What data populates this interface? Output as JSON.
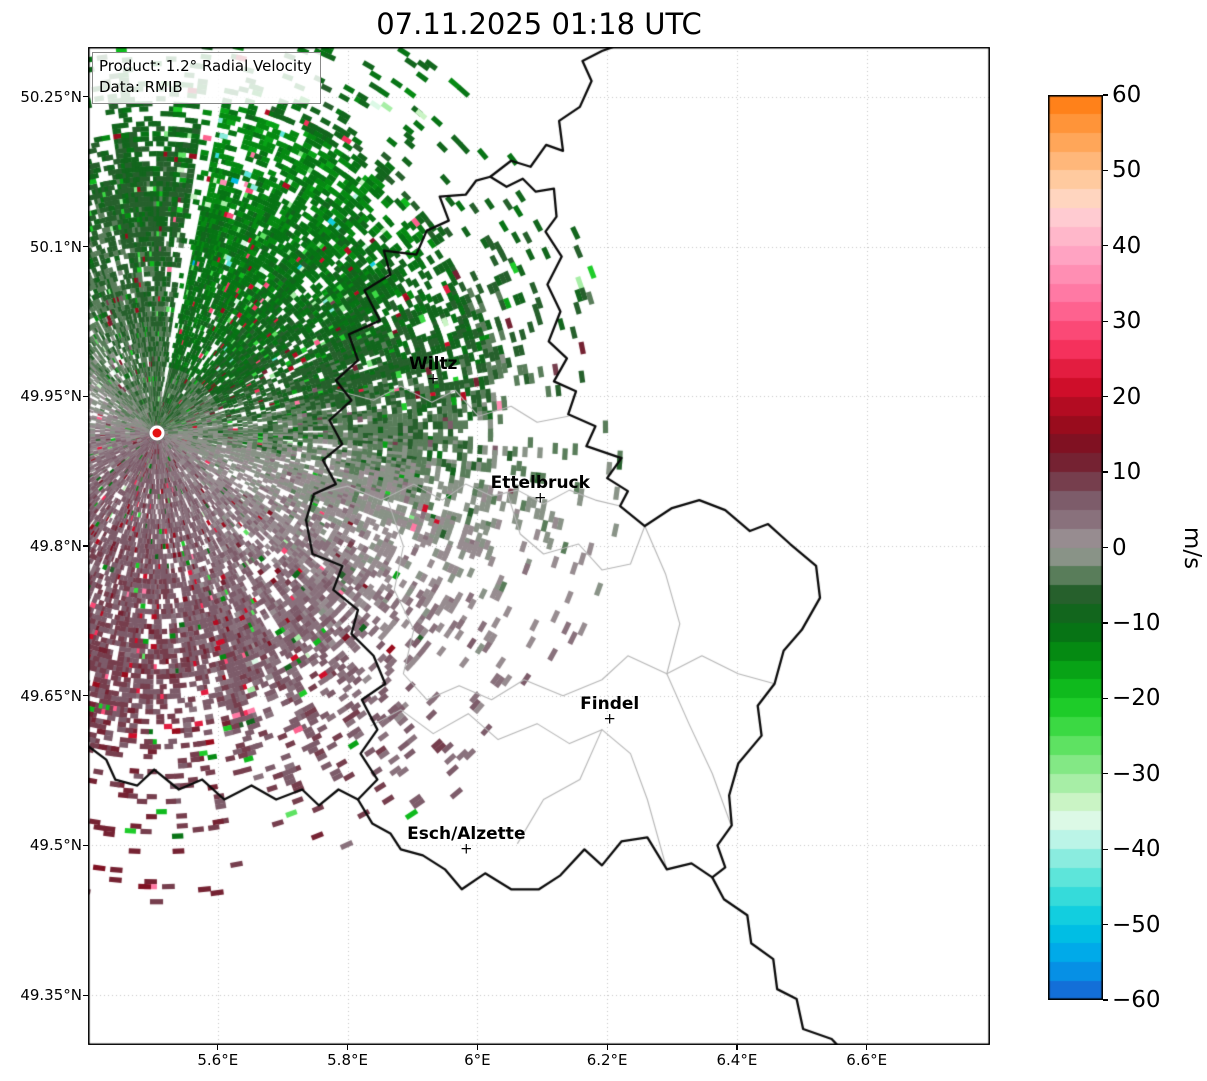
{
  "title": "07.11.2025 01:18 UTC",
  "product_box": {
    "product_line": "Product: 1.2° Radial Velocity",
    "data_line": "Data: RMIB"
  },
  "map": {
    "extent": {
      "lon_min": 5.4,
      "lon_max": 6.79,
      "lat_min": 49.3,
      "lat_max": 50.3
    },
    "x_ticks": [
      {
        "lon": 5.6,
        "label": "5.6°E"
      },
      {
        "lon": 5.8,
        "label": "5.8°E"
      },
      {
        "lon": 6.0,
        "label": "6°E"
      },
      {
        "lon": 6.2,
        "label": "6.2°E"
      },
      {
        "lon": 6.4,
        "label": "6.4°E"
      },
      {
        "lon": 6.6,
        "label": "6.6°E"
      }
    ],
    "y_ticks": [
      {
        "lat": 50.25,
        "label": "50.25°N"
      },
      {
        "lat": 50.1,
        "label": "50.1°N"
      },
      {
        "lat": 49.95,
        "label": "49.95°N"
      },
      {
        "lat": 49.8,
        "label": "49.8°N"
      },
      {
        "lat": 49.65,
        "label": "49.65°N"
      },
      {
        "lat": 49.5,
        "label": "49.5°N"
      },
      {
        "lat": 49.35,
        "label": "49.35°N"
      }
    ],
    "cities": [
      {
        "name": "Wiltz",
        "lon": 5.932,
        "lat": 49.967
      },
      {
        "name": "Ettelbruck",
        "lon": 6.097,
        "lat": 49.848
      },
      {
        "name": "Findel",
        "lon": 6.204,
        "lat": 49.627
      },
      {
        "name": "Esch/Alzette",
        "lon": 5.983,
        "lat": 49.496
      }
    ],
    "radar_site": {
      "lon": 5.5056,
      "lat": 49.9135
    },
    "country_borders": [
      [
        [
          6.02,
          50.17
        ],
        [
          6.045,
          50.16
        ],
        [
          6.07,
          50.168
        ],
        [
          6.09,
          50.155
        ],
        [
          6.118,
          50.158
        ],
        [
          6.122,
          50.13
        ],
        [
          6.105,
          50.115
        ],
        [
          6.13,
          50.09
        ],
        [
          6.108,
          50.062
        ],
        [
          6.128,
          50.035
        ],
        [
          6.11,
          50.005
        ],
        [
          6.138,
          49.988
        ],
        [
          6.118,
          49.965
        ],
        [
          6.152,
          49.955
        ],
        [
          6.14,
          49.932
        ],
        [
          6.182,
          49.92
        ],
        [
          6.168,
          49.9
        ],
        [
          6.222,
          49.888
        ],
        [
          6.2,
          49.868
        ],
        [
          6.232,
          49.855
        ],
        [
          6.22,
          49.84
        ],
        [
          6.258,
          49.82
        ],
        [
          6.3,
          49.838
        ],
        [
          6.342,
          49.846
        ],
        [
          6.382,
          49.836
        ],
        [
          6.42,
          49.815
        ],
        [
          6.448,
          49.822
        ],
        [
          6.482,
          49.802
        ],
        [
          6.522,
          49.78
        ],
        [
          6.528,
          49.748
        ],
        [
          6.5,
          49.716
        ],
        [
          6.472,
          49.695
        ],
        [
          6.458,
          49.662
        ],
        [
          6.432,
          49.64
        ],
        [
          6.438,
          49.61
        ],
        [
          6.402,
          49.582
        ],
        [
          6.388,
          49.55
        ],
        [
          6.392,
          49.52
        ],
        [
          6.37,
          49.5
        ],
        [
          6.382,
          49.478
        ],
        [
          6.362,
          49.468
        ],
        [
          6.33,
          49.482
        ],
        [
          6.292,
          49.476
        ],
        [
          6.262,
          49.508
        ],
        [
          6.222,
          49.504
        ],
        [
          6.192,
          49.48
        ],
        [
          6.165,
          49.496
        ],
        [
          6.128,
          49.47
        ],
        [
          6.095,
          49.456
        ],
        [
          6.052,
          49.456
        ],
        [
          6.012,
          49.472
        ],
        [
          5.976,
          49.456
        ],
        [
          5.95,
          49.476
        ],
        [
          5.916,
          49.49
        ],
        [
          5.882,
          49.496
        ],
        [
          5.866,
          49.512
        ],
        [
          5.838,
          49.522
        ],
        [
          5.816,
          49.546
        ],
        [
          5.846,
          49.566
        ],
        [
          5.82,
          49.592
        ],
        [
          5.846,
          49.616
        ],
        [
          5.822,
          49.646
        ],
        [
          5.858,
          49.662
        ],
        [
          5.84,
          49.69
        ],
        [
          5.806,
          49.712
        ],
        [
          5.816,
          49.736
        ],
        [
          5.778,
          49.756
        ],
        [
          5.792,
          49.78
        ],
        [
          5.746,
          49.792
        ],
        [
          5.736,
          49.826
        ],
        [
          5.748,
          49.852
        ],
        [
          5.782,
          49.862
        ],
        [
          5.762,
          49.886
        ],
        [
          5.792,
          49.902
        ],
        [
          5.772,
          49.926
        ],
        [
          5.806,
          49.946
        ],
        [
          5.782,
          49.966
        ],
        [
          5.816,
          49.986
        ],
        [
          5.802,
          50.012
        ],
        [
          5.85,
          50.026
        ],
        [
          5.826,
          50.056
        ],
        [
          5.866,
          50.072
        ],
        [
          5.856,
          50.096
        ],
        [
          5.906,
          50.092
        ],
        [
          5.922,
          50.116
        ],
        [
          5.956,
          50.126
        ],
        [
          5.942,
          50.15
        ],
        [
          5.982,
          50.152
        ],
        [
          5.998,
          50.166
        ],
        [
          6.02,
          50.17
        ]
      ],
      [
        [
          6.02,
          50.17
        ],
        [
          6.052,
          50.186
        ],
        [
          6.082,
          50.18
        ],
        [
          6.106,
          50.202
        ],
        [
          6.132,
          50.196
        ],
        [
          6.126,
          50.226
        ],
        [
          6.158,
          50.24
        ],
        [
          6.176,
          50.266
        ],
        [
          6.162,
          50.286
        ],
        [
          6.192,
          50.296
        ],
        [
          6.235,
          50.306
        ]
      ],
      [
        [
          5.395,
          49.602
        ],
        [
          5.428,
          49.586
        ],
        [
          5.442,
          49.566
        ],
        [
          5.476,
          49.56
        ],
        [
          5.502,
          49.576
        ],
        [
          5.54,
          49.556
        ],
        [
          5.576,
          49.566
        ],
        [
          5.61,
          49.546
        ],
        [
          5.652,
          49.56
        ],
        [
          5.69,
          49.546
        ],
        [
          5.73,
          49.556
        ],
        [
          5.756,
          49.54
        ],
        [
          5.786,
          49.556
        ],
        [
          5.816,
          49.546
        ]
      ],
      [
        [
          6.362,
          49.468
        ],
        [
          6.38,
          49.446
        ],
        [
          6.416,
          49.43
        ],
        [
          6.422,
          49.402
        ],
        [
          6.456,
          49.386
        ],
        [
          6.462,
          49.356
        ],
        [
          6.492,
          49.346
        ],
        [
          6.502,
          49.316
        ],
        [
          6.546,
          49.306
        ],
        [
          6.562,
          49.295
        ]
      ]
    ],
    "district_borders": [
      [
        [
          5.782,
          49.956
        ],
        [
          5.84,
          49.946
        ],
        [
          5.882,
          49.96
        ],
        [
          5.93,
          49.944
        ],
        [
          5.966,
          49.956
        ],
        [
          6.002,
          49.93
        ],
        [
          6.052,
          49.94
        ],
        [
          6.092,
          49.924
        ],
        [
          6.14,
          49.93
        ]
      ],
      [
        [
          5.748,
          49.852
        ],
        [
          5.8,
          49.86
        ],
        [
          5.852,
          49.846
        ],
        [
          5.902,
          49.862
        ],
        [
          5.946,
          49.846
        ],
        [
          5.982,
          49.862
        ],
        [
          6.022,
          49.85
        ],
        [
          6.062,
          49.856
        ],
        [
          6.102,
          49.842
        ],
        [
          6.142,
          49.856
        ],
        [
          6.182,
          49.846
        ],
        [
          6.22,
          49.84
        ]
      ],
      [
        [
          5.862,
          49.846
        ],
        [
          5.886,
          49.8
        ],
        [
          5.872,
          49.756
        ],
        [
          5.902,
          49.716
        ],
        [
          5.886,
          49.672
        ],
        [
          5.922,
          49.646
        ]
      ],
      [
        [
          6.046,
          49.854
        ],
        [
          6.066,
          49.812
        ],
        [
          6.102,
          49.792
        ],
        [
          6.156,
          49.802
        ],
        [
          6.192,
          49.776
        ],
        [
          6.236,
          49.782
        ],
        [
          6.258,
          49.82
        ]
      ],
      [
        [
          5.922,
          49.646
        ],
        [
          5.972,
          49.66
        ],
        [
          6.022,
          49.646
        ],
        [
          6.072,
          49.666
        ],
        [
          6.132,
          49.65
        ],
        [
          6.192,
          49.666
        ],
        [
          6.232,
          49.69
        ],
        [
          6.292,
          49.672
        ],
        [
          6.346,
          49.69
        ],
        [
          6.402,
          49.672
        ],
        [
          6.458,
          49.662
        ]
      ],
      [
        [
          6.258,
          49.82
        ],
        [
          6.29,
          49.772
        ],
        [
          6.312,
          49.722
        ],
        [
          6.292,
          49.672
        ]
      ],
      [
        [
          5.836,
          49.62
        ],
        [
          5.882,
          49.636
        ],
        [
          5.932,
          49.612
        ],
        [
          5.986,
          49.632
        ],
        [
          6.032,
          49.606
        ],
        [
          6.092,
          49.622
        ],
        [
          6.142,
          49.602
        ],
        [
          6.192,
          49.616
        ],
        [
          6.236,
          49.592
        ],
        [
          6.262,
          49.546
        ],
        [
          6.292,
          49.476
        ]
      ],
      [
        [
          6.192,
          49.616
        ],
        [
          6.158,
          49.566
        ],
        [
          6.102,
          49.546
        ],
        [
          6.062,
          49.502
        ]
      ],
      [
        [
          6.292,
          49.672
        ],
        [
          6.326,
          49.622
        ],
        [
          6.362,
          49.572
        ],
        [
          6.39,
          49.522
        ]
      ]
    ]
  },
  "colorbar": {
    "unit_label": "m/s",
    "vmin": -60,
    "vmax": 60,
    "band_step": 2.5,
    "tick_labels": [
      {
        "value": 60,
        "label": "60"
      },
      {
        "value": 50,
        "label": "50"
      },
      {
        "value": 40,
        "label": "40"
      },
      {
        "value": 30,
        "label": "30"
      },
      {
        "value": 20,
        "label": "20"
      },
      {
        "value": 10,
        "label": "10"
      },
      {
        "value": 0,
        "label": "0"
      },
      {
        "value": -10,
        "label": "−10"
      },
      {
        "value": -20,
        "label": "−20"
      },
      {
        "value": -30,
        "label": "−30"
      },
      {
        "value": -40,
        "label": "−40"
      },
      {
        "value": -50,
        "label": "−50"
      },
      {
        "value": -60,
        "label": "−60"
      }
    ],
    "color_anchors": [
      [
        -60,
        "#195fd2"
      ],
      [
        -55,
        "#00a0eb"
      ],
      [
        -50,
        "#00c8e1"
      ],
      [
        -45,
        "#46e1d7"
      ],
      [
        -40,
        "#a0f0e1"
      ],
      [
        -37,
        "#e1faf0"
      ],
      [
        -34,
        "#cdf5c8"
      ],
      [
        -30,
        "#96eb96"
      ],
      [
        -26,
        "#5ae15f"
      ],
      [
        -22,
        "#23d22d"
      ],
      [
        -18,
        "#0ab419"
      ],
      [
        -14,
        "#058c12"
      ],
      [
        -10,
        "#086916"
      ],
      [
        -6,
        "#285f2d"
      ],
      [
        -3,
        "#698769"
      ],
      [
        -0.5,
        "#969894"
      ],
      [
        0.5,
        "#9c9496"
      ],
      [
        3,
        "#8c7882"
      ],
      [
        7,
        "#7a5564"
      ],
      [
        10,
        "#732d3c"
      ],
      [
        13,
        "#781223"
      ],
      [
        17,
        "#a00a1c"
      ],
      [
        22,
        "#d70f2d"
      ],
      [
        27,
        "#fa3764"
      ],
      [
        33,
        "#ff73a0"
      ],
      [
        39,
        "#ffa5c3"
      ],
      [
        44,
        "#ffcdd2"
      ],
      [
        47,
        "#ffd7b9"
      ],
      [
        51,
        "#ffb97d"
      ],
      [
        56,
        "#ff963c"
      ],
      [
        60,
        "#ff780a"
      ]
    ]
  }
}
